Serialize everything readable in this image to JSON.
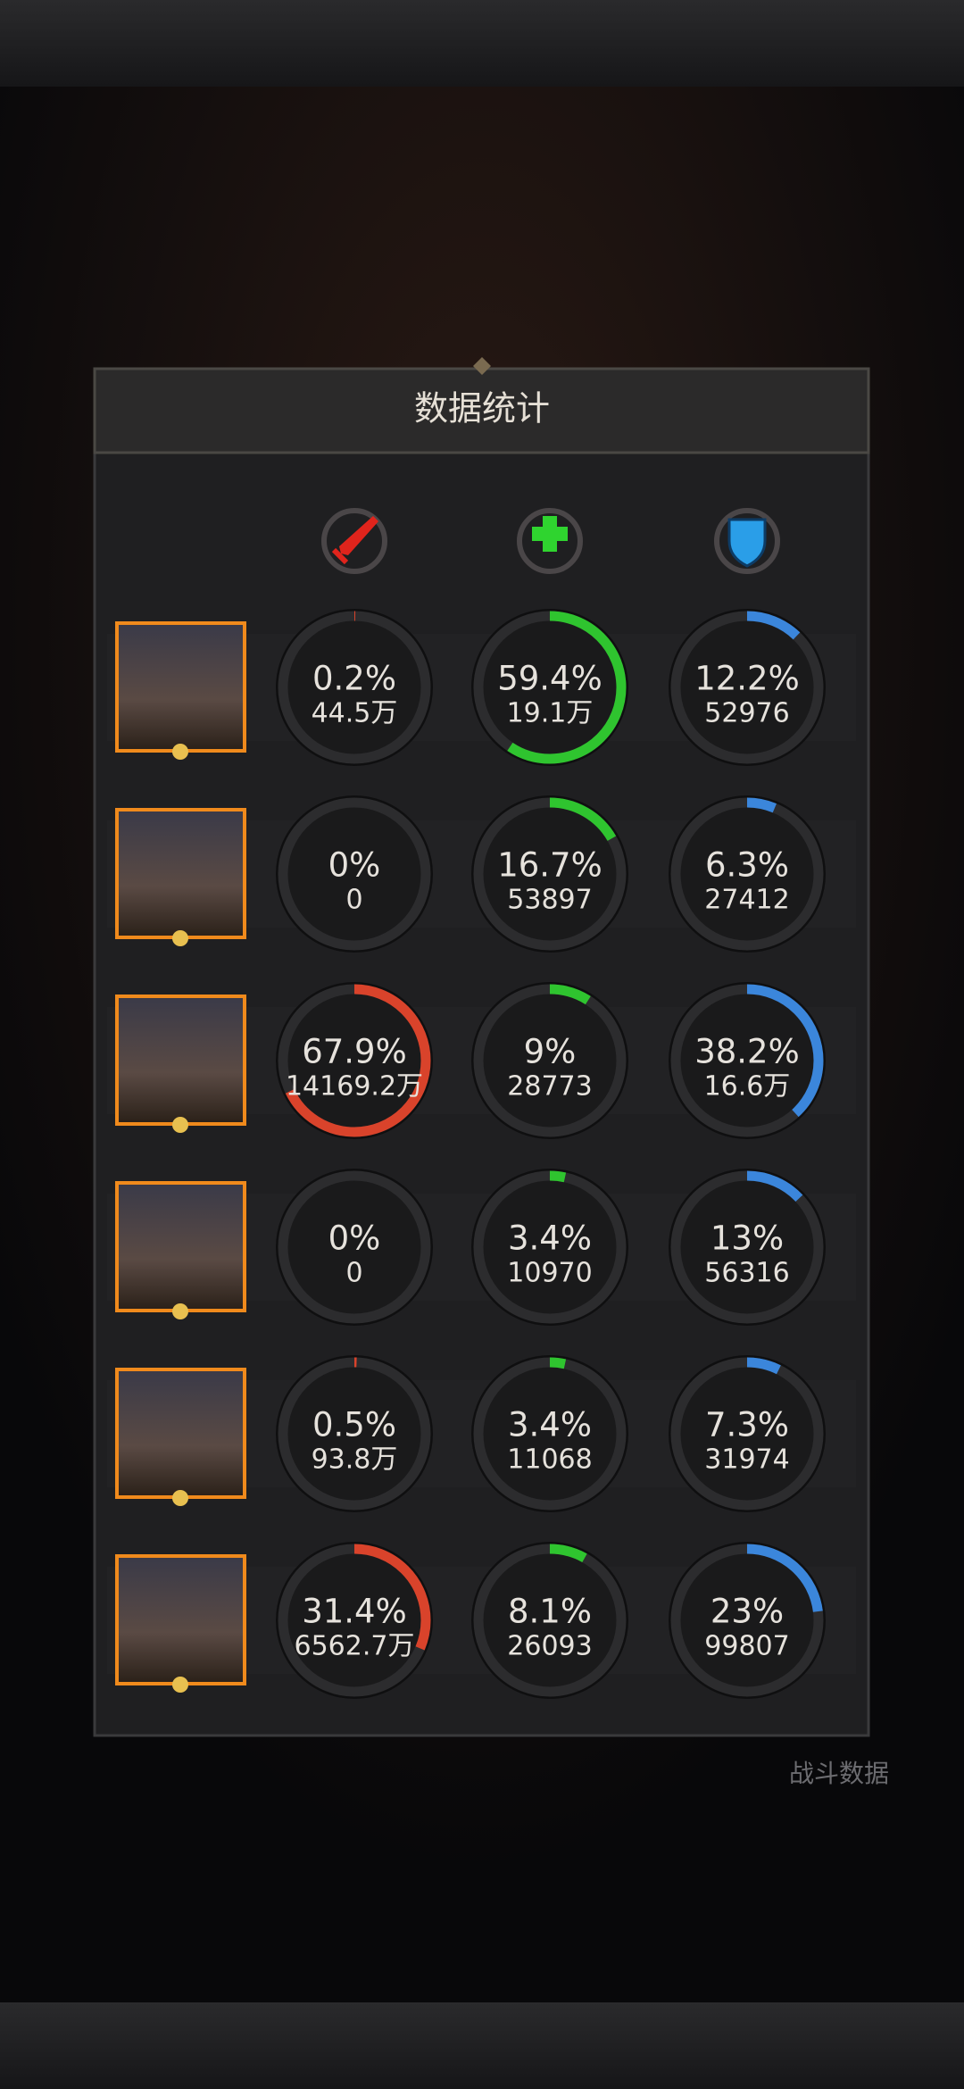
{
  "header": {
    "title": "数据统计"
  },
  "footer": {
    "button_label": "战斗数据"
  },
  "stat_colors": {
    "damage": "#d9432b",
    "healing": "#2fc42f",
    "tanking": "#3b86db"
  },
  "rows": [
    {
      "damage": {
        "value": 0.2,
        "label": "0.2%",
        "amount": "44.5万"
      },
      "healing": {
        "value": 59.4,
        "label": "59.4%",
        "amount": "19.1万"
      },
      "tanking": {
        "value": 12.2,
        "label": "12.2%",
        "amount": "52976"
      }
    },
    {
      "damage": {
        "value": 0,
        "label": "0%",
        "amount": "0"
      },
      "healing": {
        "value": 16.7,
        "label": "16.7%",
        "amount": "53897"
      },
      "tanking": {
        "value": 6.3,
        "label": "6.3%",
        "amount": "27412"
      }
    },
    {
      "damage": {
        "value": 67.9,
        "label": "67.9%",
        "amount": "14169.2万"
      },
      "healing": {
        "value": 9,
        "label": "9%",
        "amount": "28773"
      },
      "tanking": {
        "value": 38.2,
        "label": "38.2%",
        "amount": "16.6万"
      }
    },
    {
      "damage": {
        "value": 0,
        "label": "0%",
        "amount": "0"
      },
      "healing": {
        "value": 3.4,
        "label": "3.4%",
        "amount": "10970"
      },
      "tanking": {
        "value": 13,
        "label": "13%",
        "amount": "56316"
      }
    },
    {
      "damage": {
        "value": 0.5,
        "label": "0.5%",
        "amount": "93.8万"
      },
      "healing": {
        "value": 3.4,
        "label": "3.4%",
        "amount": "11068"
      },
      "tanking": {
        "value": 7.3,
        "label": "7.3%",
        "amount": "31974"
      }
    },
    {
      "damage": {
        "value": 31.4,
        "label": "31.4%",
        "amount": "6562.7万"
      },
      "healing": {
        "value": 8.1,
        "label": "8.1%",
        "amount": "26093"
      },
      "tanking": {
        "value": 23,
        "label": "23%",
        "amount": "99807"
      }
    }
  ]
}
